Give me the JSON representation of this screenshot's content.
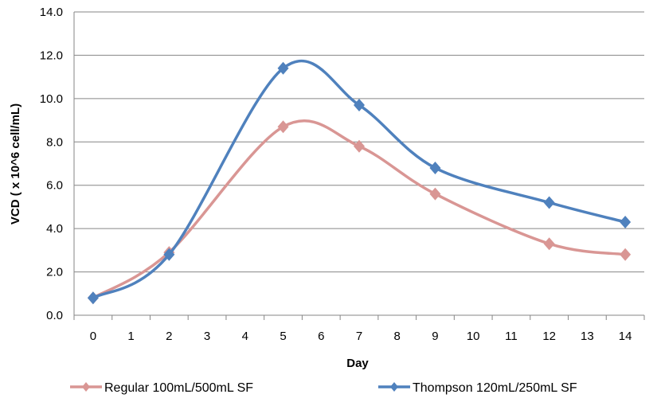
{
  "chart_data": {
    "type": "line",
    "title": "",
    "xlabel": "Day",
    "ylabel": "VCD ( x 10^6 cell/mL)",
    "categories": [
      "0",
      "1",
      "2",
      "3",
      "4",
      "5",
      "6",
      "7",
      "8",
      "9",
      "10",
      "11",
      "12",
      "13",
      "14"
    ],
    "ylim": [
      0,
      14
    ],
    "yticks": [
      "0.0",
      "2.0",
      "4.0",
      "6.0",
      "8.0",
      "10.0",
      "12.0",
      "14.0"
    ],
    "grid": true,
    "legend_position": "bottom",
    "series": [
      {
        "name": "Regular 100mL/500mL SF",
        "color": "#d99694",
        "x": [
          0,
          2,
          5,
          7,
          9,
          12,
          14
        ],
        "values": [
          0.8,
          2.9,
          8.7,
          7.8,
          5.6,
          3.3,
          2.8
        ]
      },
      {
        "name": "Thompson  120mL/250mL SF",
        "color": "#4f81bd",
        "x": [
          0,
          2,
          5,
          7,
          9,
          12,
          14
        ],
        "values": [
          0.8,
          2.8,
          11.4,
          9.7,
          6.8,
          5.2,
          4.3
        ]
      }
    ]
  }
}
